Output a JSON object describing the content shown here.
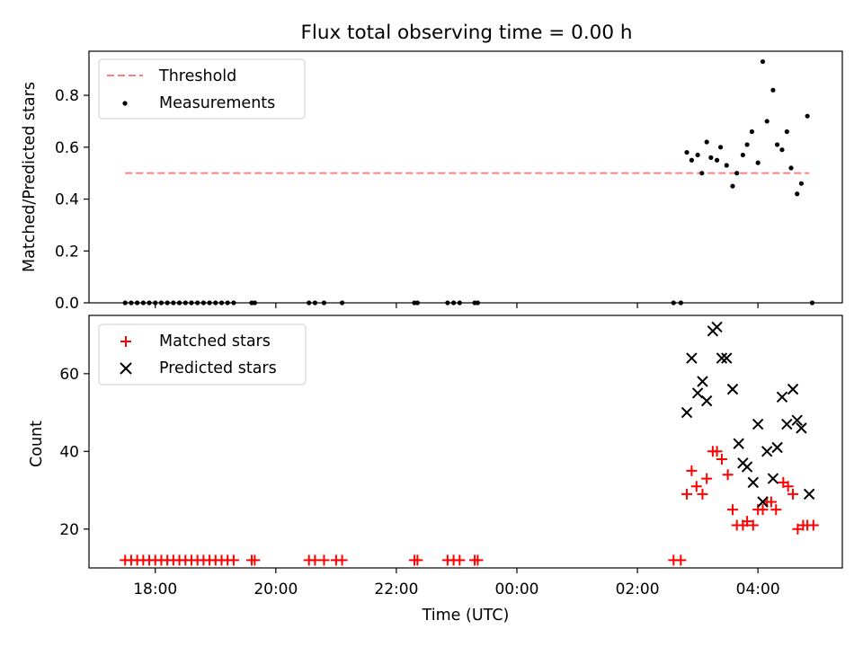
{
  "chart_data": [
    {
      "type": "scatter",
      "title": "Flux total observing time = 0.00 h",
      "ylabel": "Matched/Predicted stars",
      "ylim": [
        0,
        0.97
      ],
      "yticks": [
        "0.0",
        "0.2",
        "0.4",
        "0.6",
        "0.8"
      ],
      "grid": false,
      "legend_position": "upper-left",
      "series": [
        {
          "name": "Threshold",
          "style": "dashed-line",
          "color": "#ff7f7f",
          "points": [
            [
              -6.5,
              0.5
            ],
            [
              4.85,
              0.5
            ]
          ]
        },
        {
          "name": "Measurements",
          "style": "dot",
          "color": "#000000",
          "points": [
            [
              -6.5,
              0
            ],
            [
              -6.4,
              0
            ],
            [
              -6.3,
              0
            ],
            [
              -6.2,
              0
            ],
            [
              -6.1,
              0
            ],
            [
              -6.0,
              0
            ],
            [
              -5.9,
              0
            ],
            [
              -5.8,
              0
            ],
            [
              -5.7,
              0
            ],
            [
              -5.6,
              0
            ],
            [
              -5.5,
              0
            ],
            [
              -5.4,
              0
            ],
            [
              -5.3,
              0
            ],
            [
              -5.2,
              0
            ],
            [
              -5.1,
              0
            ],
            [
              -5.0,
              0
            ],
            [
              -4.9,
              0
            ],
            [
              -4.8,
              0
            ],
            [
              -4.7,
              0
            ],
            [
              -4.4,
              0
            ],
            [
              -4.35,
              0
            ],
            [
              -3.45,
              0
            ],
            [
              -3.35,
              0
            ],
            [
              -3.2,
              0
            ],
            [
              -2.9,
              0
            ],
            [
              -1.7,
              0
            ],
            [
              -1.65,
              0
            ],
            [
              -1.15,
              0
            ],
            [
              -1.05,
              0
            ],
            [
              -0.95,
              0
            ],
            [
              -0.7,
              0
            ],
            [
              -0.65,
              0
            ],
            [
              2.6,
              0
            ],
            [
              2.72,
              0
            ],
            [
              4.9,
              0
            ],
            [
              2.82,
              0.58
            ],
            [
              2.9,
              0.55
            ],
            [
              3.0,
              0.57
            ],
            [
              3.07,
              0.5
            ],
            [
              3.15,
              0.62
            ],
            [
              3.22,
              0.56
            ],
            [
              3.32,
              0.55
            ],
            [
              3.38,
              0.6
            ],
            [
              3.48,
              0.53
            ],
            [
              3.58,
              0.45
            ],
            [
              3.65,
              0.5
            ],
            [
              3.75,
              0.57
            ],
            [
              3.82,
              0.61
            ],
            [
              3.9,
              0.66
            ],
            [
              4.0,
              0.54
            ],
            [
              4.08,
              0.93
            ],
            [
              4.15,
              0.7
            ],
            [
              4.25,
              0.82
            ],
            [
              4.32,
              0.61
            ],
            [
              4.4,
              0.59
            ],
            [
              4.48,
              0.66
            ],
            [
              4.55,
              0.52
            ],
            [
              4.65,
              0.42
            ],
            [
              4.72,
              0.46
            ],
            [
              4.82,
              0.72
            ]
          ]
        }
      ]
    },
    {
      "type": "scatter",
      "xlabel": "Time (UTC)",
      "ylabel": "Count",
      "xlim": [
        -7.1,
        5.4
      ],
      "ylim": [
        10,
        75
      ],
      "xticks": [
        "18:00",
        "20:00",
        "22:00",
        "00:00",
        "02:00",
        "04:00"
      ],
      "yticks": [
        "20",
        "40",
        "60"
      ],
      "grid": false,
      "legend_position": "upper-left",
      "series": [
        {
          "name": "Matched stars",
          "marker": "+",
          "color": "#ff0000",
          "points": [
            [
              -6.5,
              12
            ],
            [
              -6.4,
              12
            ],
            [
              -6.3,
              12
            ],
            [
              -6.2,
              12
            ],
            [
              -6.1,
              12
            ],
            [
              -6.0,
              12
            ],
            [
              -5.9,
              12
            ],
            [
              -5.8,
              12
            ],
            [
              -5.7,
              12
            ],
            [
              -5.6,
              12
            ],
            [
              -5.5,
              12
            ],
            [
              -5.4,
              12
            ],
            [
              -5.3,
              12
            ],
            [
              -5.2,
              12
            ],
            [
              -5.1,
              12
            ],
            [
              -5.0,
              12
            ],
            [
              -4.9,
              12
            ],
            [
              -4.8,
              12
            ],
            [
              -4.7,
              12
            ],
            [
              -4.4,
              12
            ],
            [
              -4.35,
              12
            ],
            [
              -3.45,
              12
            ],
            [
              -3.35,
              12
            ],
            [
              -3.2,
              12
            ],
            [
              -3.0,
              12
            ],
            [
              -2.9,
              12
            ],
            [
              -1.7,
              12
            ],
            [
              -1.65,
              12
            ],
            [
              -1.15,
              12
            ],
            [
              -1.05,
              12
            ],
            [
              -0.95,
              12
            ],
            [
              -0.7,
              12
            ],
            [
              -0.65,
              12
            ],
            [
              2.6,
              12
            ],
            [
              2.72,
              12
            ],
            [
              2.82,
              29
            ],
            [
              2.9,
              35
            ],
            [
              2.98,
              31
            ],
            [
              3.08,
              29
            ],
            [
              3.15,
              33
            ],
            [
              3.25,
              40
            ],
            [
              3.32,
              40
            ],
            [
              3.4,
              38
            ],
            [
              3.5,
              34
            ],
            [
              3.58,
              25
            ],
            [
              3.65,
              21
            ],
            [
              3.75,
              21
            ],
            [
              3.82,
              22
            ],
            [
              3.92,
              21
            ],
            [
              4.0,
              25
            ],
            [
              4.08,
              25
            ],
            [
              4.15,
              27
            ],
            [
              4.22,
              27
            ],
            [
              4.3,
              25
            ],
            [
              4.42,
              32
            ],
            [
              4.5,
              31
            ],
            [
              4.58,
              29
            ],
            [
              4.66,
              20
            ],
            [
              4.75,
              21
            ],
            [
              4.82,
              21
            ],
            [
              4.92,
              21
            ]
          ]
        },
        {
          "name": "Predicted stars",
          "marker": "x",
          "color": "#000000",
          "points": [
            [
              2.82,
              50
            ],
            [
              2.9,
              64
            ],
            [
              3.0,
              55
            ],
            [
              3.08,
              58
            ],
            [
              3.15,
              53
            ],
            [
              3.25,
              71
            ],
            [
              3.32,
              72
            ],
            [
              3.4,
              64
            ],
            [
              3.48,
              64
            ],
            [
              3.58,
              56
            ],
            [
              3.68,
              42
            ],
            [
              3.75,
              37
            ],
            [
              3.82,
              36
            ],
            [
              3.92,
              32
            ],
            [
              4.0,
              47
            ],
            [
              4.08,
              27
            ],
            [
              4.15,
              40
            ],
            [
              4.25,
              33
            ],
            [
              4.32,
              41
            ],
            [
              4.4,
              54
            ],
            [
              4.48,
              47
            ],
            [
              4.58,
              56
            ],
            [
              4.65,
              48
            ],
            [
              4.72,
              46
            ],
            [
              4.85,
              29
            ]
          ]
        }
      ]
    }
  ]
}
